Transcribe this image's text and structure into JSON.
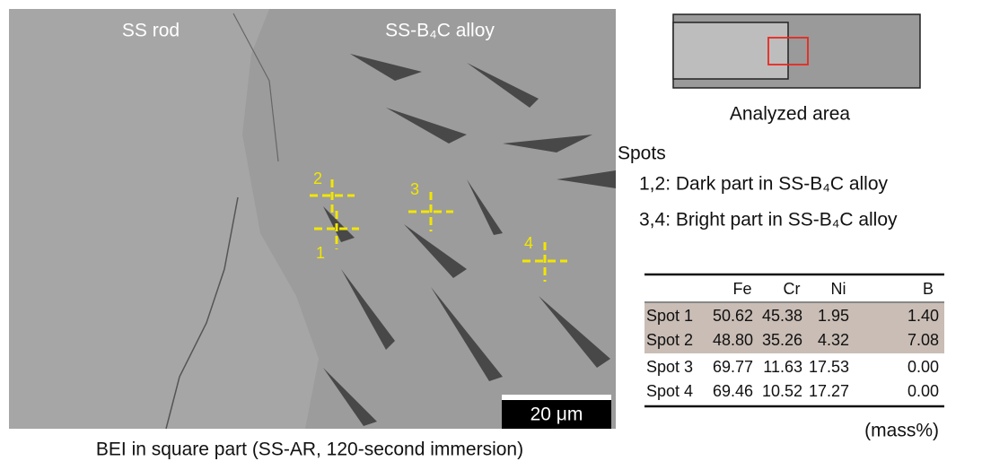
{
  "figure": {
    "image": {
      "left_label": "SS rod",
      "right_label": "SS-B₄C alloy",
      "scale_bar": "20 μm",
      "spots": [
        {
          "label": "1"
        },
        {
          "label": "2"
        },
        {
          "label": "3"
        },
        {
          "label": "4"
        }
      ]
    },
    "caption": "BEI in square part (SS-AR, 120-second immersion)",
    "diagram_label": "Analyzed area",
    "spots_title": "Spots",
    "spots_notes": [
      "1,2: Dark part in SS-B₄C alloy",
      "3,4: Bright part in SS-B₄C alloy"
    ],
    "table": {
      "header": [
        "",
        "Fe",
        "Cr",
        "Ni",
        "B"
      ],
      "rows": [
        [
          "Spot 1",
          "50.62",
          "45.38",
          "1.95",
          "1.40"
        ],
        [
          "Spot 2",
          "48.80",
          "35.26",
          "4.32",
          "7.08"
        ],
        [
          "Spot 3",
          "69.77",
          "11.63",
          "17.53",
          "0.00"
        ],
        [
          "Spot 4",
          "69.46",
          "10.52",
          "17.27",
          "0.00"
        ]
      ],
      "unit": "(mass%)"
    }
  }
}
